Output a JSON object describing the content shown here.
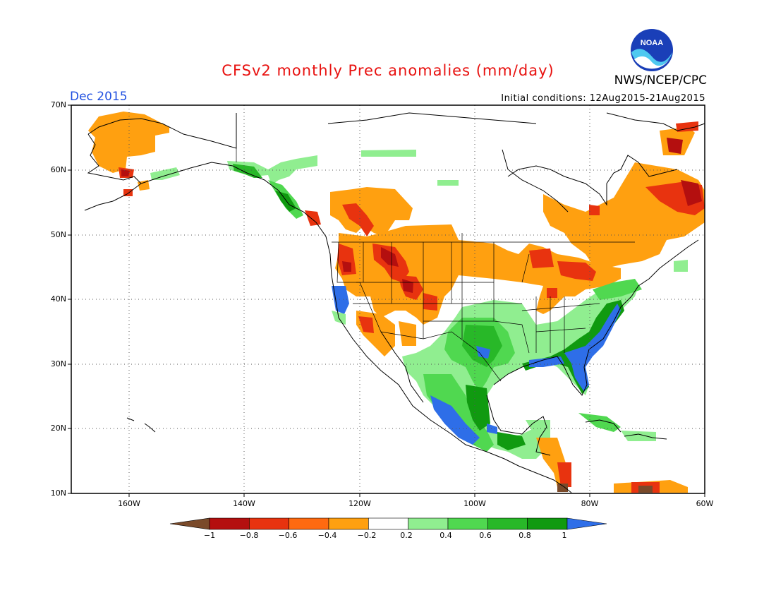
{
  "title": "CFSv2 monthly Prec anomalies (mm/day)",
  "period": "Dec 2015",
  "initial_conditions": "Initial conditions: 12Aug2015-21Aug2015",
  "agency": "NWS/NCEP/CPC",
  "logo_text": "NOAA",
  "lat_labels": [
    "70N",
    "60N",
    "50N",
    "40N",
    "30N",
    "20N",
    "10N"
  ],
  "lon_labels": [
    "160W",
    "140W",
    "120W",
    "100W",
    "80W",
    "60W"
  ],
  "colorbar": {
    "labels": [
      "−1",
      "−0.8",
      "−0.6",
      "−0.4",
      "−0.2",
      "0.2",
      "0.4",
      "0.6",
      "0.8",
      "1"
    ],
    "colors": [
      "#7a4a2a",
      "#b40f0f",
      "#e8330f",
      "#ff6a10",
      "#ffa010",
      "#ffffff",
      "#90ee90",
      "#50d850",
      "#28b828",
      "#109a10",
      "#2e6ee8"
    ]
  },
  "map": {
    "lat_range": [
      10,
      70
    ],
    "lon_range": [
      -170,
      -60
    ],
    "grid": "dotted",
    "variable": "precipitation anomaly",
    "units": "mm/day"
  }
}
